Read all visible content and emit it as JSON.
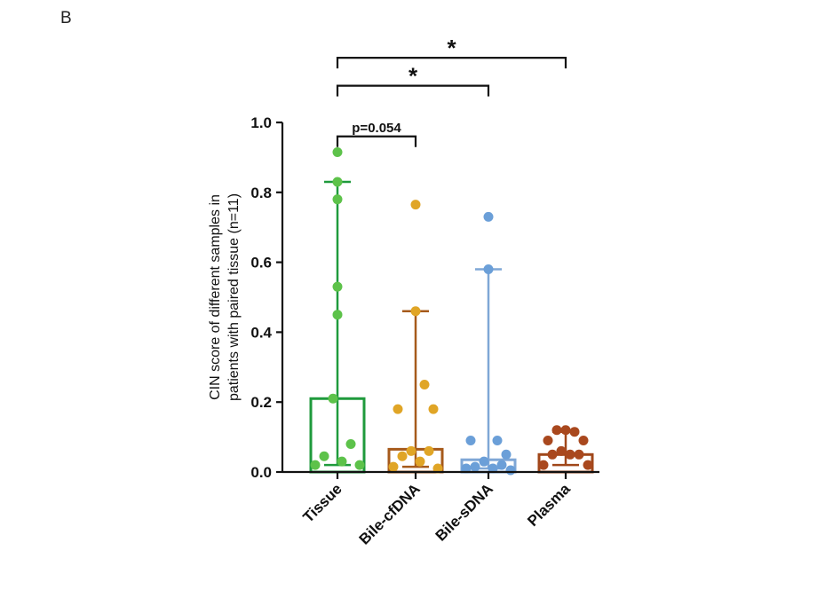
{
  "panel_label": "B",
  "chart_data": {
    "type": "bar",
    "title": "",
    "xlabel": "",
    "ylabel_lines": [
      "CIN score of different samples in",
      "patients with paired tissue (n=11)"
    ],
    "ylim": [
      0,
      1.0
    ],
    "yticks": [
      "0.0",
      "0.2",
      "0.4",
      "0.6",
      "0.8",
      "1.0"
    ],
    "categories": [
      "Tissue",
      "Bile-cfDNA",
      "Bile-sDNA",
      "Plasma"
    ],
    "medians": [
      0.21,
      0.065,
      0.035,
      0.05
    ],
    "error_low": [
      0.02,
      0.015,
      0.01,
      0.02
    ],
    "error_high": [
      0.83,
      0.46,
      0.58,
      0.115
    ],
    "colors": [
      "#1f9a3c",
      "#a65a1b",
      "#7fa7d6",
      "#a0471a"
    ],
    "point_colors": [
      "#5dc24a",
      "#e0a526",
      "#6b9fd8",
      "#a9481e"
    ],
    "points": [
      [
        0.915,
        0.83,
        0.78,
        0.53,
        0.45,
        0.21,
        0.08,
        0.045,
        0.03,
        0.02,
        0.02
      ],
      [
        0.765,
        0.46,
        0.25,
        0.18,
        0.18,
        0.06,
        0.06,
        0.045,
        0.03,
        0.015,
        0.01
      ],
      [
        0.73,
        0.58,
        0.09,
        0.09,
        0.05,
        0.03,
        0.02,
        0.015,
        0.01,
        0.01,
        0.005
      ],
      [
        0.12,
        0.12,
        0.115,
        0.09,
        0.09,
        0.06,
        0.05,
        0.05,
        0.05,
        0.02,
        0.02
      ]
    ],
    "significance": [
      {
        "from": "Tissue",
        "to": "Bile-cfDNA",
        "label": "p=0.054",
        "height": 0.96
      },
      {
        "from": "Tissue",
        "to": "Bile-sDNA",
        "label": "*",
        "height": 1.105
      },
      {
        "from": "Tissue",
        "to": "Plasma",
        "label": "*",
        "height": 1.185
      }
    ]
  }
}
